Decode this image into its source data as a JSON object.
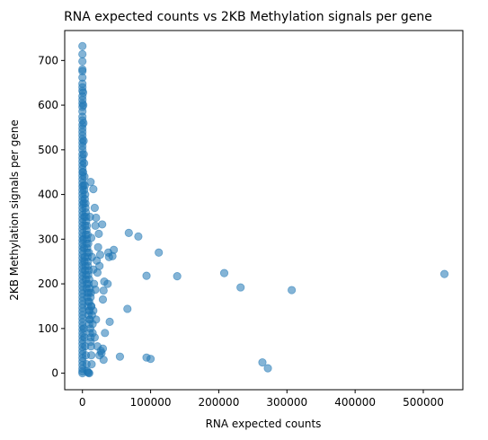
{
  "chart_data": {
    "type": "scatter",
    "title": "RNA expected counts vs 2KB Methylation signals per gene",
    "xlabel": "RNA expected counts",
    "ylabel": "2KB Methylation signals per gene",
    "xlim": [
      -26000,
      558000
    ],
    "ylim": [
      -37,
      767
    ],
    "xticks": [
      0,
      100000,
      200000,
      300000,
      400000,
      500000
    ],
    "xtick_labels": [
      "0",
      "100000",
      "200000",
      "300000",
      "400000",
      "500000"
    ],
    "yticks": [
      0,
      100,
      200,
      300,
      400,
      500,
      600,
      700
    ],
    "ytick_labels": [
      "0",
      "100",
      "200",
      "300",
      "400",
      "500",
      "600",
      "700"
    ],
    "grid": false,
    "point_color": "#1f77b4",
    "point_alpha": 0.55,
    "series": [
      {
        "points": [
          [
            0,
            732
          ],
          [
            0,
            714
          ],
          [
            0,
            698
          ],
          [
            0,
            680
          ],
          [
            0,
            676
          ],
          [
            0,
            662
          ],
          [
            0,
            648
          ],
          [
            0,
            640
          ],
          [
            0,
            632
          ],
          [
            0,
            620
          ],
          [
            0,
            612
          ],
          [
            0,
            604
          ],
          [
            0,
            596
          ],
          [
            0,
            586
          ],
          [
            0,
            574
          ],
          [
            0,
            566
          ],
          [
            0,
            556
          ],
          [
            0,
            548
          ],
          [
            0,
            540
          ],
          [
            0,
            532
          ],
          [
            0,
            524
          ],
          [
            0,
            516
          ],
          [
            0,
            508
          ],
          [
            0,
            500
          ],
          [
            0,
            490
          ],
          [
            0,
            482
          ],
          [
            0,
            474
          ],
          [
            0,
            466
          ],
          [
            0,
            458
          ],
          [
            0,
            450
          ],
          [
            0,
            442
          ],
          [
            0,
            434
          ],
          [
            0,
            426
          ],
          [
            0,
            418
          ],
          [
            0,
            410
          ],
          [
            0,
            402
          ],
          [
            0,
            394
          ],
          [
            0,
            386
          ],
          [
            0,
            378
          ],
          [
            0,
            370
          ],
          [
            0,
            362
          ],
          [
            0,
            354
          ],
          [
            0,
            346
          ],
          [
            0,
            338
          ],
          [
            0,
            330
          ],
          [
            0,
            322
          ],
          [
            0,
            314
          ],
          [
            0,
            306
          ],
          [
            0,
            298
          ],
          [
            0,
            290
          ],
          [
            0,
            282
          ],
          [
            0,
            274
          ],
          [
            0,
            266
          ],
          [
            0,
            258
          ],
          [
            0,
            250
          ],
          [
            0,
            242
          ],
          [
            0,
            234
          ],
          [
            0,
            226
          ],
          [
            0,
            218
          ],
          [
            0,
            210
          ],
          [
            0,
            202
          ],
          [
            0,
            194
          ],
          [
            0,
            186
          ],
          [
            0,
            178
          ],
          [
            0,
            170
          ],
          [
            0,
            162
          ],
          [
            0,
            154
          ],
          [
            0,
            146
          ],
          [
            0,
            138
          ],
          [
            0,
            130
          ],
          [
            0,
            122
          ],
          [
            0,
            114
          ],
          [
            0,
            106
          ],
          [
            0,
            98
          ],
          [
            0,
            90
          ],
          [
            0,
            82
          ],
          [
            0,
            74
          ],
          [
            0,
            66
          ],
          [
            0,
            58
          ],
          [
            0,
            50
          ],
          [
            0,
            42
          ],
          [
            0,
            34
          ],
          [
            0,
            26
          ],
          [
            0,
            18
          ],
          [
            0,
            10
          ],
          [
            0,
            4
          ],
          [
            0,
            0
          ],
          [
            1000,
            628
          ],
          [
            1200,
            600
          ],
          [
            1500,
            560
          ],
          [
            1800,
            520
          ],
          [
            2000,
            490
          ],
          [
            2500,
            470
          ],
          [
            3000,
            440
          ],
          [
            3500,
            420
          ],
          [
            4000,
            400
          ],
          [
            4500,
            380
          ],
          [
            5000,
            360
          ],
          [
            5500,
            340
          ],
          [
            6000,
            320
          ],
          [
            6500,
            300
          ],
          [
            7000,
            280
          ],
          [
            7500,
            260
          ],
          [
            8000,
            240
          ],
          [
            8500,
            220
          ],
          [
            9000,
            200
          ],
          [
            9500,
            180
          ],
          [
            10000,
            160
          ],
          [
            10500,
            140
          ],
          [
            11000,
            120
          ],
          [
            11500,
            100
          ],
          [
            12000,
            80
          ],
          [
            12500,
            60
          ],
          [
            13000,
            40
          ],
          [
            13500,
            20
          ],
          [
            2000,
            380
          ],
          [
            3000,
            350
          ],
          [
            4000,
            330
          ],
          [
            5000,
            310
          ],
          [
            6000,
            290
          ],
          [
            7000,
            270
          ],
          [
            8000,
            250
          ],
          [
            9000,
            230
          ],
          [
            10000,
            210
          ],
          [
            11000,
            190
          ],
          [
            12000,
            170
          ],
          [
            13000,
            150
          ],
          [
            14000,
            130
          ],
          [
            15000,
            110
          ],
          [
            3000,
            250
          ],
          [
            4000,
            230
          ],
          [
            5000,
            210
          ],
          [
            6000,
            190
          ],
          [
            7000,
            170
          ],
          [
            8000,
            150
          ],
          [
            9000,
            130
          ],
          [
            10000,
            110
          ],
          [
            11000,
            90
          ],
          [
            12000,
            70
          ],
          [
            1500,
            300
          ],
          [
            2500,
            280
          ],
          [
            3500,
            260
          ],
          [
            4500,
            240
          ],
          [
            5500,
            220
          ],
          [
            6500,
            200
          ],
          [
            7500,
            180
          ],
          [
            8500,
            160
          ],
          [
            9500,
            140
          ],
          [
            10500,
            120
          ],
          [
            2000,
            100
          ],
          [
            3000,
            80
          ],
          [
            4000,
            60
          ],
          [
            5000,
            40
          ],
          [
            6000,
            20
          ],
          [
            7000,
            5
          ],
          [
            8000,
            2
          ],
          [
            9000,
            1
          ],
          [
            10000,
            0
          ],
          [
            1000,
            450
          ],
          [
            1500,
            420
          ],
          [
            2500,
            410
          ],
          [
            3500,
            390
          ],
          [
            4500,
            370
          ],
          [
            5500,
            350
          ],
          [
            6500,
            330
          ],
          [
            7500,
            310
          ],
          [
            8500,
            290
          ],
          [
            9500,
            270
          ],
          [
            12000,
            428
          ],
          [
            16000,
            412
          ],
          [
            11000,
            350
          ],
          [
            18000,
            370
          ],
          [
            20000,
            348
          ],
          [
            19000,
            330
          ],
          [
            24000,
            312
          ],
          [
            29000,
            333
          ],
          [
            14000,
            260
          ],
          [
            21000,
            252
          ],
          [
            25000,
            240
          ],
          [
            23000,
            282
          ],
          [
            17000,
            200
          ],
          [
            12500,
            180
          ],
          [
            16000,
            232
          ],
          [
            13000,
            303
          ],
          [
            26000,
            265
          ],
          [
            22000,
            225
          ],
          [
            19000,
            187
          ],
          [
            15000,
            90
          ],
          [
            18000,
            80
          ],
          [
            22000,
            60
          ],
          [
            28000,
            45
          ],
          [
            33000,
            90
          ],
          [
            25000,
            40
          ],
          [
            31000,
            30
          ],
          [
            13000,
            150
          ],
          [
            16000,
            140
          ],
          [
            20000,
            120
          ],
          [
            30000,
            165
          ],
          [
            31000,
            185
          ],
          [
            32000,
            205
          ],
          [
            37000,
            200
          ],
          [
            38000,
            270
          ],
          [
            39000,
            260
          ],
          [
            44000,
            262
          ],
          [
            46000,
            276
          ],
          [
            40000,
            115
          ],
          [
            55000,
            37
          ],
          [
            30000,
            55
          ],
          [
            27000,
            50
          ],
          [
            68000,
            314
          ],
          [
            82000,
            306
          ],
          [
            112000,
            270
          ],
          [
            66000,
            144
          ],
          [
            94000,
            218
          ],
          [
            139000,
            217
          ],
          [
            208000,
            224
          ],
          [
            232000,
            192
          ],
          [
            307000,
            186
          ],
          [
            531000,
            222
          ],
          [
            94000,
            35
          ],
          [
            100000,
            32
          ],
          [
            264000,
            24
          ],
          [
            272000,
            11
          ]
        ]
      }
    ]
  }
}
